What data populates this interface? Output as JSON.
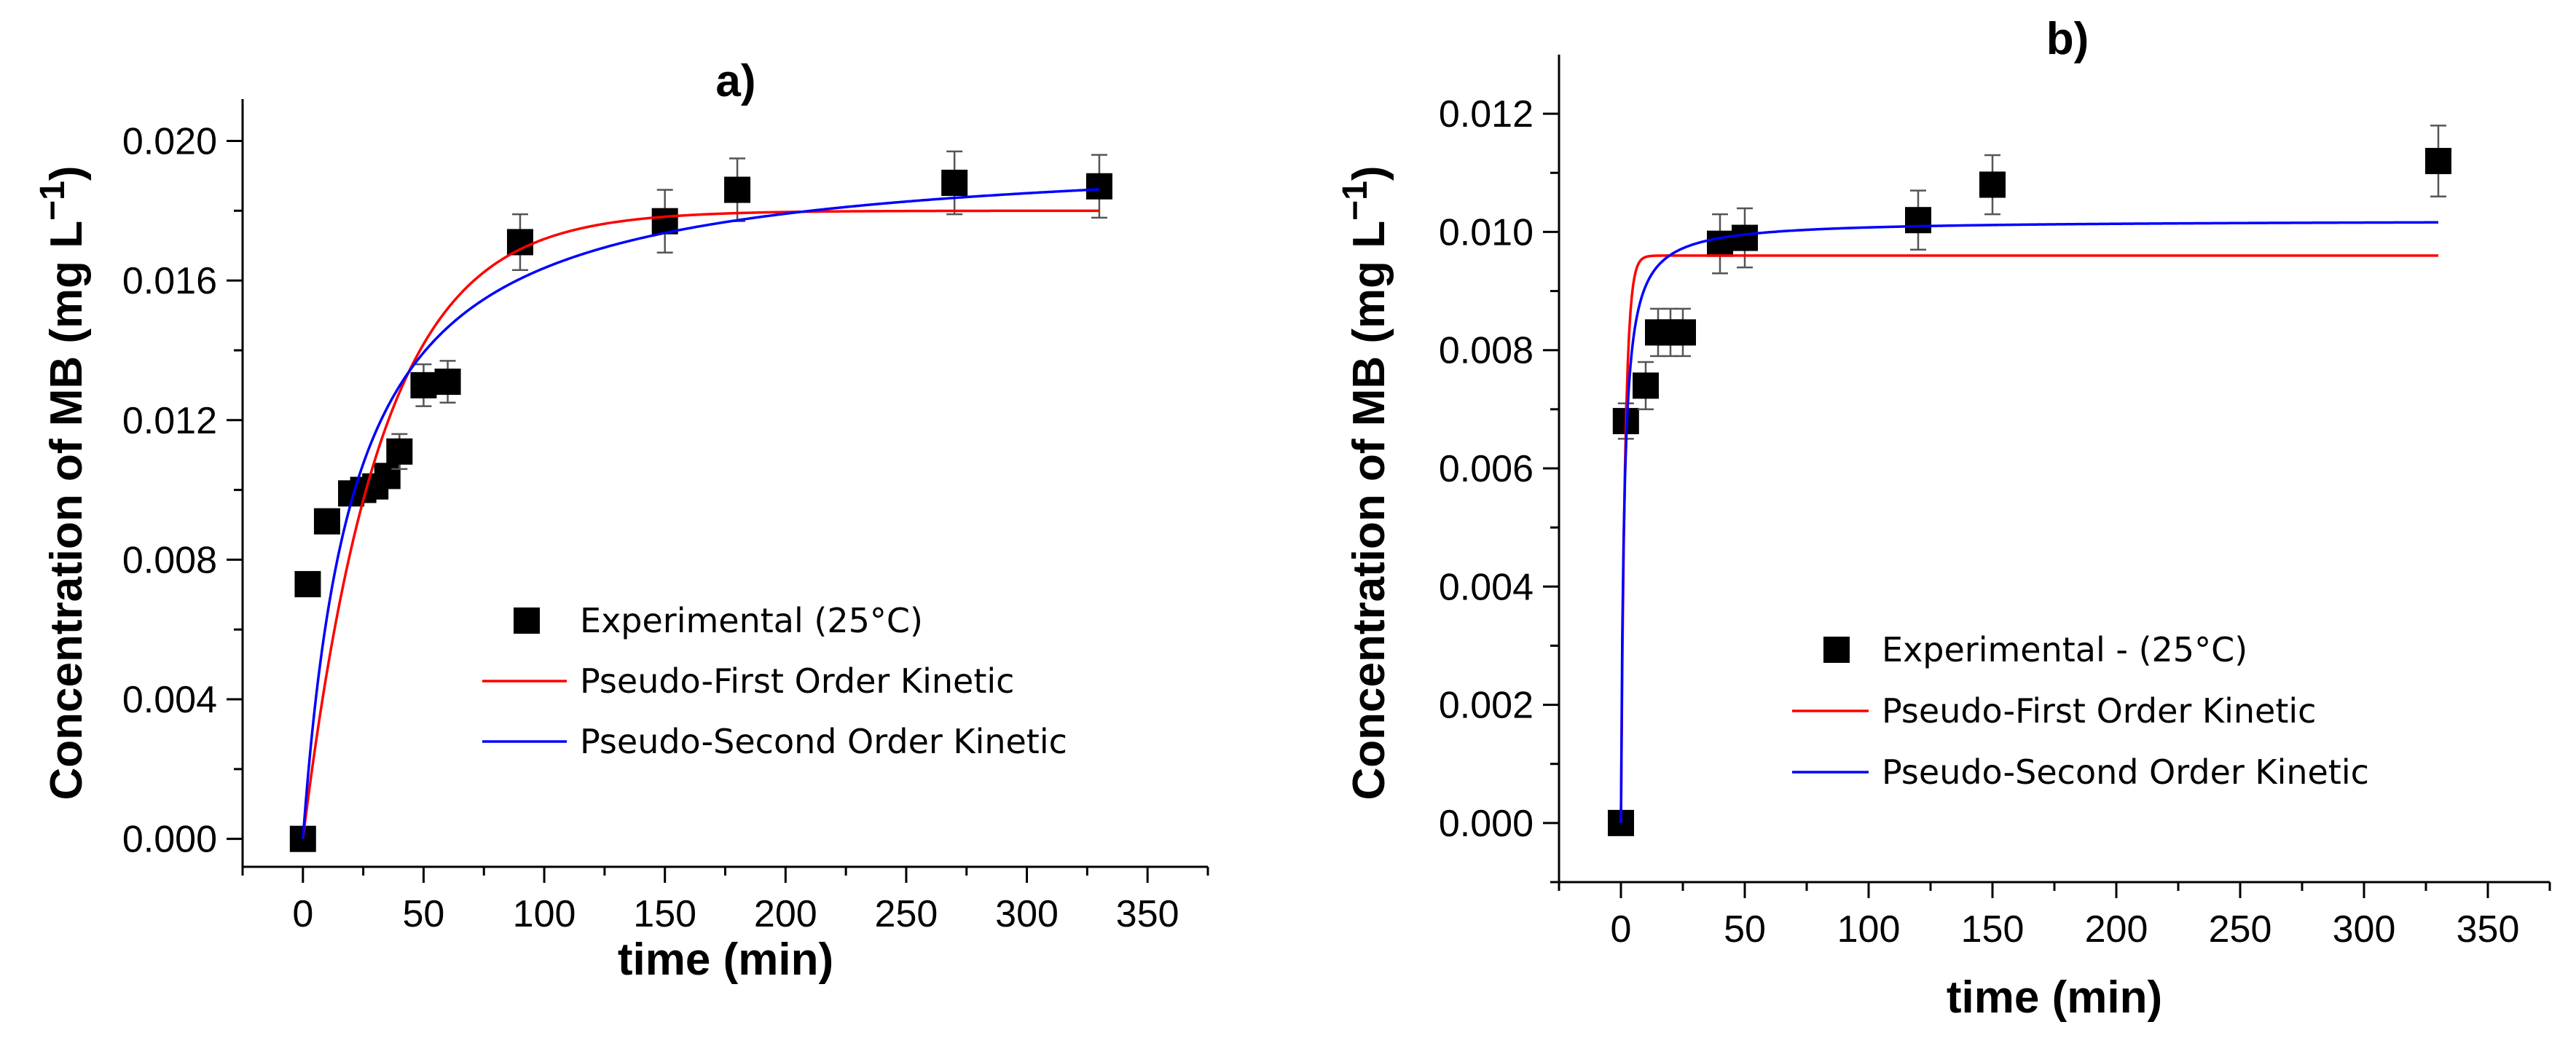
{
  "chart_data": [
    {
      "type": "scatter",
      "title": "a)",
      "xlabel": "time (min)",
      "ylabel": "Concentration of MB (mg L",
      "ylabel_sup": "−1",
      "ylabel_close": ")",
      "xlim": [
        -25,
        375
      ],
      "ylim": [
        -0.0008,
        0.0212
      ],
      "xticks": [
        0,
        50,
        100,
        150,
        200,
        250,
        300,
        350
      ],
      "xtick_labels": [
        "0",
        "50",
        "100",
        "150",
        "200",
        "250",
        "300",
        "350"
      ],
      "yticks": [
        0.0,
        0.004,
        0.008,
        0.012,
        0.016,
        0.02
      ],
      "ytick_labels": [
        "0.000",
        "0.004",
        "0.008",
        "0.012",
        "0.016",
        "0.020"
      ],
      "grid": false,
      "legend_position": "center-right",
      "series": [
        {
          "name": "Experimental (25°C)",
          "kind": "points",
          "color": "#000000",
          "x": [
            0,
            2,
            10,
            20,
            25,
            30,
            35,
            40,
            50,
            60,
            90,
            150,
            180,
            270,
            330
          ],
          "y": [
            0.0,
            0.0073,
            0.0091,
            0.0099,
            0.01,
            0.0101,
            0.0104,
            0.0111,
            0.013,
            0.0131,
            0.0171,
            0.0177,
            0.0186,
            0.0188,
            0.0187
          ],
          "err": [
            0,
            0,
            0.0003,
            0,
            0,
            0,
            0,
            0.0005,
            0.0006,
            0.0006,
            0.0008,
            0.0009,
            0.0009,
            0.0009,
            0.0009
          ]
        },
        {
          "name": "Pseudo-First Order Kinetic",
          "kind": "line",
          "color": "#ff0000",
          "model": "first",
          "qe": 0.018,
          "k": 0.031,
          "x_range": [
            0,
            330
          ]
        },
        {
          "name": "Pseudo-Second Order Kinetic",
          "kind": "line",
          "color": "#0000ff",
          "model": "second",
          "qe": 0.0198,
          "k": 2.4,
          "x_range": [
            0,
            330
          ]
        }
      ]
    },
    {
      "type": "scatter",
      "title": "b)",
      "xlabel": "time (min)",
      "ylabel": "Concentration of MB (mg L",
      "ylabel_sup": "−1",
      "ylabel_close": ")",
      "xlim": [
        -25,
        375
      ],
      "ylim": [
        -0.001,
        0.013
      ],
      "xticks": [
        0,
        50,
        100,
        150,
        200,
        250,
        300,
        350
      ],
      "xtick_labels": [
        "0",
        "50",
        "100",
        "150",
        "200",
        "250",
        "300",
        "350"
      ],
      "yticks": [
        0.0,
        0.002,
        0.004,
        0.006,
        0.008,
        0.01,
        0.012
      ],
      "ytick_labels": [
        "0.000",
        "0.002",
        "0.004",
        "0.006",
        "0.008",
        "0.010",
        "0.012"
      ],
      "grid": false,
      "legend_position": "bottom-center",
      "series": [
        {
          "name": "Experimental -  (25°C)",
          "kind": "points",
          "color": "#000000",
          "x": [
            0,
            2,
            10,
            15,
            20,
            25,
            40,
            50,
            120,
            150,
            330
          ],
          "y": [
            0.0,
            0.0068,
            0.0074,
            0.0083,
            0.0083,
            0.0083,
            0.0098,
            0.0099,
            0.0102,
            0.0108,
            0.0112
          ],
          "err": [
            0,
            0.0003,
            0.0004,
            0.0004,
            0.0004,
            0.0004,
            0.0005,
            0.0005,
            0.0005,
            0.0005,
            0.0006
          ]
        },
        {
          "name": "Pseudo-First Order Kinetic",
          "kind": "line",
          "color": "#ff0000",
          "model": "first",
          "qe": 0.0096,
          "k": 0.6,
          "x_range": [
            0,
            330
          ]
        },
        {
          "name": "Pseudo-Second Order Kinetic",
          "kind": "line",
          "color": "#0000ff",
          "model": "second",
          "qe": 0.0102,
          "k": 80,
          "x_range": [
            0,
            330
          ]
        }
      ]
    }
  ]
}
